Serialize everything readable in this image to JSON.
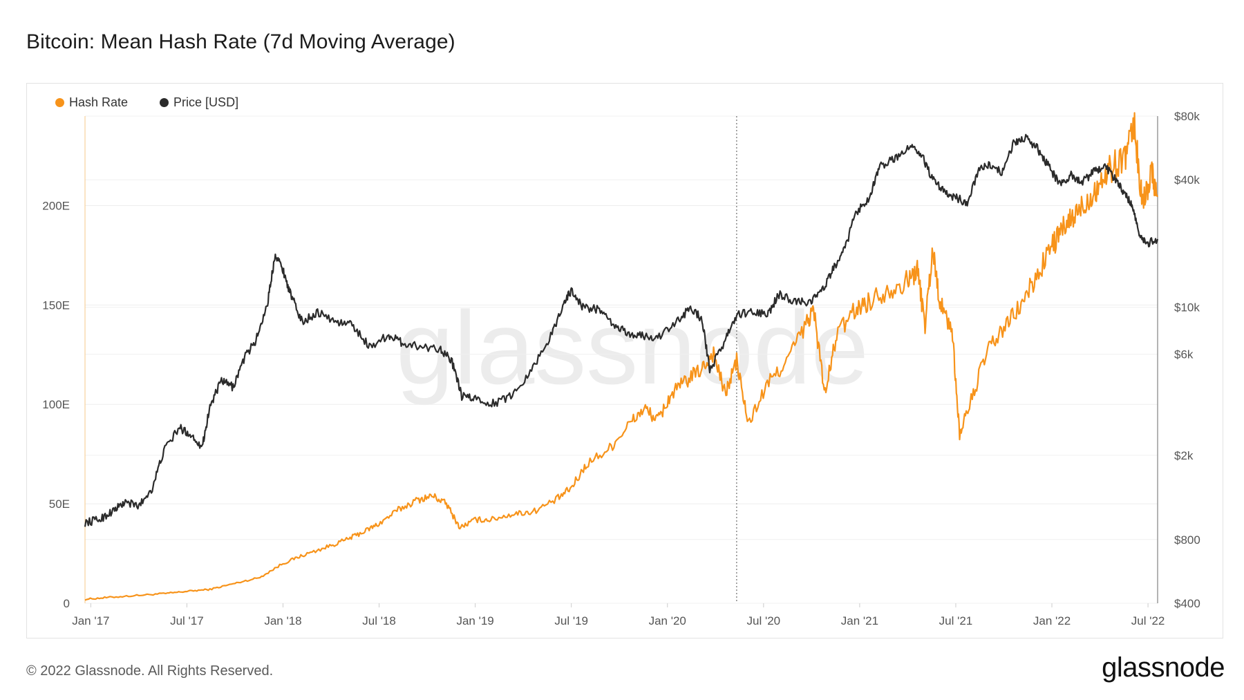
{
  "page": {
    "title": "Bitcoin: Mean Hash Rate (7d Moving Average)",
    "copyright": "© 2022 Glassnode. All Rights Reserved.",
    "logo_text": "glassnode",
    "watermark": "glassnode"
  },
  "legend": [
    {
      "label": "Hash Rate",
      "color": "#f7931a"
    },
    {
      "label": "Price [USD]",
      "color": "#2b2b2b"
    }
  ],
  "chart_data": {
    "type": "line",
    "title": "Bitcoin: Mean Hash Rate (7d Moving Average)",
    "x_ticks": [
      {
        "label": "Jan '17",
        "t": 2017.0
      },
      {
        "label": "Jul '17",
        "t": 2017.5
      },
      {
        "label": "Jan '18",
        "t": 2018.0
      },
      {
        "label": "Jul '18",
        "t": 2018.5
      },
      {
        "label": "Jan '19",
        "t": 2019.0
      },
      {
        "label": "Jul '19",
        "t": 2019.5
      },
      {
        "label": "Jan '20",
        "t": 2020.0
      },
      {
        "label": "Jul '20",
        "t": 2020.5
      },
      {
        "label": "Jan '21",
        "t": 2021.0
      },
      {
        "label": "Jul '21",
        "t": 2021.5
      },
      {
        "label": "Jan '22",
        "t": 2022.0
      },
      {
        "label": "Jul '22",
        "t": 2022.5
      }
    ],
    "x_range": [
      2016.97,
      2022.55
    ],
    "marker_line_t": 2020.36,
    "left_axis": {
      "name": "Hash Rate",
      "ticks": [
        {
          "label": "0",
          "v": 0
        },
        {
          "label": "50E",
          "v": 50
        },
        {
          "label": "100E",
          "v": 100
        },
        {
          "label": "150E",
          "v": 150
        },
        {
          "label": "200E",
          "v": 200
        }
      ],
      "range": [
        0,
        245
      ]
    },
    "right_axis": {
      "name": "Price [USD]",
      "scale": "log",
      "ticks": [
        {
          "label": "$400",
          "v": 400
        },
        {
          "label": "$800",
          "v": 800
        },
        {
          "label": "$2k",
          "v": 2000
        },
        {
          "label": "$6k",
          "v": 6000
        },
        {
          "label": "$10k",
          "v": 10000
        },
        {
          "label": "$40k",
          "v": 40000
        },
        {
          "label": "$80k",
          "v": 80000
        }
      ],
      "range": [
        400,
        80000
      ]
    },
    "series": [
      {
        "name": "Hash Rate",
        "color": "#f7931a",
        "axis": "left",
        "points": [
          [
            2016.97,
            2
          ],
          [
            2017.1,
            3
          ],
          [
            2017.25,
            4
          ],
          [
            2017.4,
            5
          ],
          [
            2017.5,
            6
          ],
          [
            2017.62,
            7
          ],
          [
            2017.75,
            10
          ],
          [
            2017.88,
            13
          ],
          [
            2018.0,
            20
          ],
          [
            2018.1,
            24
          ],
          [
            2018.22,
            28
          ],
          [
            2018.33,
            32
          ],
          [
            2018.42,
            36
          ],
          [
            2018.5,
            40
          ],
          [
            2018.6,
            47
          ],
          [
            2018.7,
            52
          ],
          [
            2018.78,
            54
          ],
          [
            2018.85,
            50
          ],
          [
            2018.92,
            38
          ],
          [
            2019.0,
            42
          ],
          [
            2019.08,
            42
          ],
          [
            2019.2,
            45
          ],
          [
            2019.3,
            46
          ],
          [
            2019.42,
            52
          ],
          [
            2019.5,
            58
          ],
          [
            2019.58,
            70
          ],
          [
            2019.7,
            78
          ],
          [
            2019.8,
            90
          ],
          [
            2019.88,
            98
          ],
          [
            2019.95,
            92
          ],
          [
            2020.02,
            105
          ],
          [
            2020.1,
            112
          ],
          [
            2020.18,
            118
          ],
          [
            2020.24,
            126
          ],
          [
            2020.3,
            105
          ],
          [
            2020.36,
            122
          ],
          [
            2020.42,
            90
          ],
          [
            2020.52,
            110
          ],
          [
            2020.62,
            122
          ],
          [
            2020.72,
            140
          ],
          [
            2020.76,
            148
          ],
          [
            2020.82,
            105
          ],
          [
            2020.88,
            135
          ],
          [
            2020.98,
            148
          ],
          [
            2021.05,
            152
          ],
          [
            2021.15,
            158
          ],
          [
            2021.25,
            162
          ],
          [
            2021.3,
            168
          ],
          [
            2021.34,
            140
          ],
          [
            2021.38,
            178
          ],
          [
            2021.42,
            150
          ],
          [
            2021.48,
            138
          ],
          [
            2021.52,
            85
          ],
          [
            2021.58,
            102
          ],
          [
            2021.66,
            126
          ],
          [
            2021.75,
            138
          ],
          [
            2021.84,
            150
          ],
          [
            2021.92,
            164
          ],
          [
            2022.0,
            180
          ],
          [
            2022.06,
            188
          ],
          [
            2022.12,
            195
          ],
          [
            2022.18,
            202
          ],
          [
            2022.24,
            210
          ],
          [
            2022.3,
            218
          ],
          [
            2022.38,
            225
          ],
          [
            2022.43,
            240
          ],
          [
            2022.47,
            200
          ],
          [
            2022.52,
            218
          ],
          [
            2022.55,
            205
          ]
        ]
      },
      {
        "name": "Price [USD]",
        "color": "#2b2b2b",
        "axis": "right",
        "points": [
          [
            2016.97,
            960
          ],
          [
            2017.05,
            1000
          ],
          [
            2017.12,
            1100
          ],
          [
            2017.18,
            1200
          ],
          [
            2017.25,
            1150
          ],
          [
            2017.32,
            1400
          ],
          [
            2017.38,
            2100
          ],
          [
            2017.46,
            2700
          ],
          [
            2017.52,
            2500
          ],
          [
            2017.58,
            2200
          ],
          [
            2017.62,
            3400
          ],
          [
            2017.68,
            4500
          ],
          [
            2017.74,
            4200
          ],
          [
            2017.8,
            5800
          ],
          [
            2017.86,
            7000
          ],
          [
            2017.92,
            10500
          ],
          [
            2017.96,
            18000
          ],
          [
            2018.0,
            15000
          ],
          [
            2018.04,
            11500
          ],
          [
            2018.1,
            8500
          ],
          [
            2018.18,
            9500
          ],
          [
            2018.28,
            8500
          ],
          [
            2018.36,
            8300
          ],
          [
            2018.45,
            6500
          ],
          [
            2018.55,
            7400
          ],
          [
            2018.62,
            6800
          ],
          [
            2018.72,
            6500
          ],
          [
            2018.82,
            6400
          ],
          [
            2018.88,
            5500
          ],
          [
            2018.93,
            3800
          ],
          [
            2019.0,
            3700
          ],
          [
            2019.1,
            3500
          ],
          [
            2019.2,
            3900
          ],
          [
            2019.3,
            5200
          ],
          [
            2019.4,
            7500
          ],
          [
            2019.46,
            10500
          ],
          [
            2019.5,
            12000
          ],
          [
            2019.56,
            10000
          ],
          [
            2019.64,
            9800
          ],
          [
            2019.72,
            8200
          ],
          [
            2019.8,
            7500
          ],
          [
            2019.88,
            7300
          ],
          [
            2019.95,
            7200
          ],
          [
            2020.05,
            8500
          ],
          [
            2020.12,
            10000
          ],
          [
            2020.18,
            8800
          ],
          [
            2020.22,
            5000
          ],
          [
            2020.3,
            7000
          ],
          [
            2020.36,
            9200
          ],
          [
            2020.44,
            9500
          ],
          [
            2020.52,
            9200
          ],
          [
            2020.58,
            11500
          ],
          [
            2020.66,
            10700
          ],
          [
            2020.74,
            10600
          ],
          [
            2020.8,
            11800
          ],
          [
            2020.86,
            15000
          ],
          [
            2020.92,
            18500
          ],
          [
            2020.98,
            28000
          ],
          [
            2021.05,
            33000
          ],
          [
            2021.1,
            46000
          ],
          [
            2021.18,
            50000
          ],
          [
            2021.26,
            58000
          ],
          [
            2021.32,
            53000
          ],
          [
            2021.38,
            40000
          ],
          [
            2021.44,
            35000
          ],
          [
            2021.5,
            33000
          ],
          [
            2021.56,
            31000
          ],
          [
            2021.62,
            45000
          ],
          [
            2021.68,
            47000
          ],
          [
            2021.74,
            43000
          ],
          [
            2021.8,
            60000
          ],
          [
            2021.86,
            63000
          ],
          [
            2021.92,
            57000
          ],
          [
            2021.98,
            47000
          ],
          [
            2022.04,
            38000
          ],
          [
            2022.1,
            42000
          ],
          [
            2022.16,
            39000
          ],
          [
            2022.22,
            44000
          ],
          [
            2022.28,
            46000
          ],
          [
            2022.34,
            39000
          ],
          [
            2022.38,
            34000
          ],
          [
            2022.42,
            30000
          ],
          [
            2022.46,
            21000
          ],
          [
            2022.5,
            20000
          ],
          [
            2022.55,
            21000
          ]
        ]
      }
    ]
  }
}
